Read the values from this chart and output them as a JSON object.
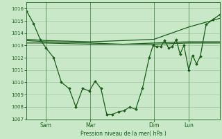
{
  "background_color": "#c8e8c8",
  "grid_color": "#a0c8a0",
  "line_color": "#1a5c1a",
  "marker_color": "#1a5c1a",
  "xlabel": "Pression niveau de la mer( hPa )",
  "ylim": [
    1007,
    1016.5
  ],
  "yticks": [
    1007,
    1008,
    1009,
    1010,
    1011,
    1012,
    1013,
    1014,
    1015,
    1016
  ],
  "x_labels": [
    "Sam",
    "Mar",
    "Dim",
    "Lun"
  ],
  "x_vlines": [
    0.1,
    0.33,
    0.66,
    0.84
  ],
  "flat1_x": [
    0.0,
    0.1,
    0.33,
    0.5,
    0.66,
    0.84,
    1.0
  ],
  "flat1_y": [
    1013.2,
    1013.2,
    1013.1,
    1013.1,
    1013.1,
    1013.2,
    1013.2
  ],
  "flat2_x": [
    0.0,
    0.1,
    0.33,
    0.5,
    0.66,
    0.84,
    1.0
  ],
  "flat2_y": [
    1013.4,
    1013.3,
    1013.2,
    1013.1,
    1013.2,
    1013.3,
    1013.3
  ],
  "diag_x": [
    0.0,
    0.1,
    0.33,
    0.5,
    0.66,
    0.84,
    1.0
  ],
  "diag_y": [
    1013.5,
    1013.4,
    1013.3,
    1013.4,
    1013.5,
    1014.5,
    1015.2
  ],
  "main_x": [
    0.0,
    0.035,
    0.07,
    0.1,
    0.14,
    0.18,
    0.22,
    0.255,
    0.29,
    0.325,
    0.355,
    0.385,
    0.415,
    0.445,
    0.475,
    0.505,
    0.535,
    0.565,
    0.6,
    0.635,
    0.655,
    0.675,
    0.695,
    0.715,
    0.735,
    0.755,
    0.775,
    0.795,
    0.815,
    0.84,
    0.86,
    0.88,
    0.9,
    0.93,
    0.965,
    1.0
  ],
  "main_y": [
    1015.8,
    1014.8,
    1013.5,
    1012.8,
    1012.0,
    1010.0,
    1009.5,
    1008.0,
    1009.5,
    1009.3,
    1010.1,
    1009.5,
    1007.4,
    1007.4,
    1007.6,
    1007.7,
    1008.0,
    1007.8,
    1009.5,
    1012.0,
    1013.0,
    1012.9,
    1012.9,
    1013.4,
    1012.8,
    1012.9,
    1013.5,
    1012.3,
    1013.0,
    1011.0,
    1012.2,
    1011.5,
    1012.1,
    1014.7,
    1015.1,
    1015.5
  ]
}
